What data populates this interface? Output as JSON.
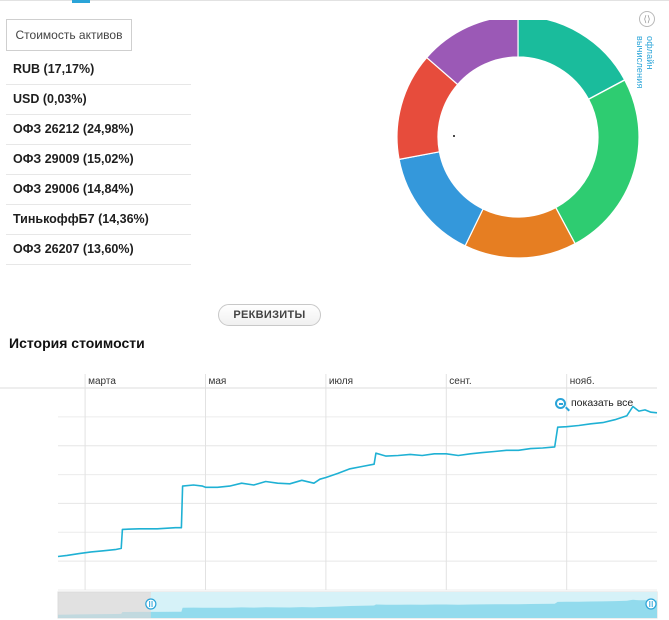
{
  "assets": {
    "title": "Стоимость активов",
    "items": [
      {
        "label": "RUB (17,17%)"
      },
      {
        "label": "USD (0,03%)"
      },
      {
        "label": "ОФЗ 26212 (24,98%)"
      },
      {
        "label": "ОФЗ 29009 (15,02%)"
      },
      {
        "label": "ОФЗ 29006 (14,84%)"
      },
      {
        "label": "ТинькоффБ7 (14,36%)"
      },
      {
        "label": "ОФЗ 26207 (13,60%)"
      }
    ]
  },
  "side_link": "офлайн вычисления",
  "details_button": "РЕКВИЗИТЫ",
  "history": {
    "title": "История стоимости",
    "show_all": "показать все"
  },
  "chart_data": [
    {
      "type": "pie",
      "title": "",
      "categories": [
        "RUB",
        "USD",
        "ОФЗ 26212",
        "ОФЗ 29009",
        "ОФЗ 29006",
        "ТинькоффБ7",
        "ОФЗ 26207"
      ],
      "values": [
        17.17,
        0.03,
        24.98,
        15.02,
        14.84,
        14.36,
        13.6
      ],
      "colors": [
        "#1abc9c",
        "#e67e22",
        "#2ecc71",
        "#e67e22",
        "#3498db",
        "#e74c3c",
        "#9b59b6"
      ],
      "donut": true
    },
    {
      "type": "line",
      "title": "",
      "xlabel": "",
      "ylabel": "",
      "x_tick_labels": [
        "марта",
        "мая",
        "июля",
        "сент.",
        "нояб."
      ],
      "x_ticks_month": [
        3,
        5,
        7,
        9,
        11
      ],
      "xlim_month": [
        2.55,
        12.5
      ],
      "grid": true,
      "color": "#1fb1d4",
      "series": [
        {
          "x_month": [
            2.55,
            2.7,
            2.9,
            3.1,
            3.3,
            3.5,
            3.6,
            3.62,
            3.9,
            4.2,
            4.5,
            4.6,
            4.62,
            4.8,
            4.95,
            5.0,
            5.2,
            5.4,
            5.6,
            5.8,
            6.0,
            6.2,
            6.4,
            6.6,
            6.8,
            6.9,
            7.0,
            7.2,
            7.4,
            7.6,
            7.8,
            7.83,
            8.0,
            8.2,
            8.4,
            8.6,
            8.8,
            9.0,
            9.2,
            9.4,
            9.6,
            9.8,
            10.0,
            10.2,
            10.4,
            10.6,
            10.8,
            10.85,
            11.0,
            11.2,
            11.4,
            11.6,
            11.8,
            12.0,
            12.1,
            12.2,
            12.3,
            12.4,
            12.5
          ],
          "y": [
            0.58,
            0.6,
            0.63,
            0.66,
            0.68,
            0.7,
            0.72,
            1.05,
            1.06,
            1.06,
            1.08,
            1.08,
            1.8,
            1.82,
            1.8,
            1.78,
            1.78,
            1.8,
            1.85,
            1.82,
            1.88,
            1.85,
            1.84,
            1.9,
            1.85,
            1.92,
            1.95,
            2.02,
            2.1,
            2.14,
            2.18,
            2.37,
            2.32,
            2.33,
            2.35,
            2.33,
            2.36,
            2.36,
            2.33,
            2.36,
            2.38,
            2.4,
            2.42,
            2.42,
            2.45,
            2.46,
            2.48,
            2.82,
            2.83,
            2.85,
            2.88,
            2.9,
            2.95,
            3.02,
            3.18,
            3.1,
            3.12,
            3.08,
            3.07
          ]
        }
      ],
      "navigator": {
        "selected_from_fraction": 0.155,
        "selected_to_fraction": 1.0
      }
    }
  ]
}
